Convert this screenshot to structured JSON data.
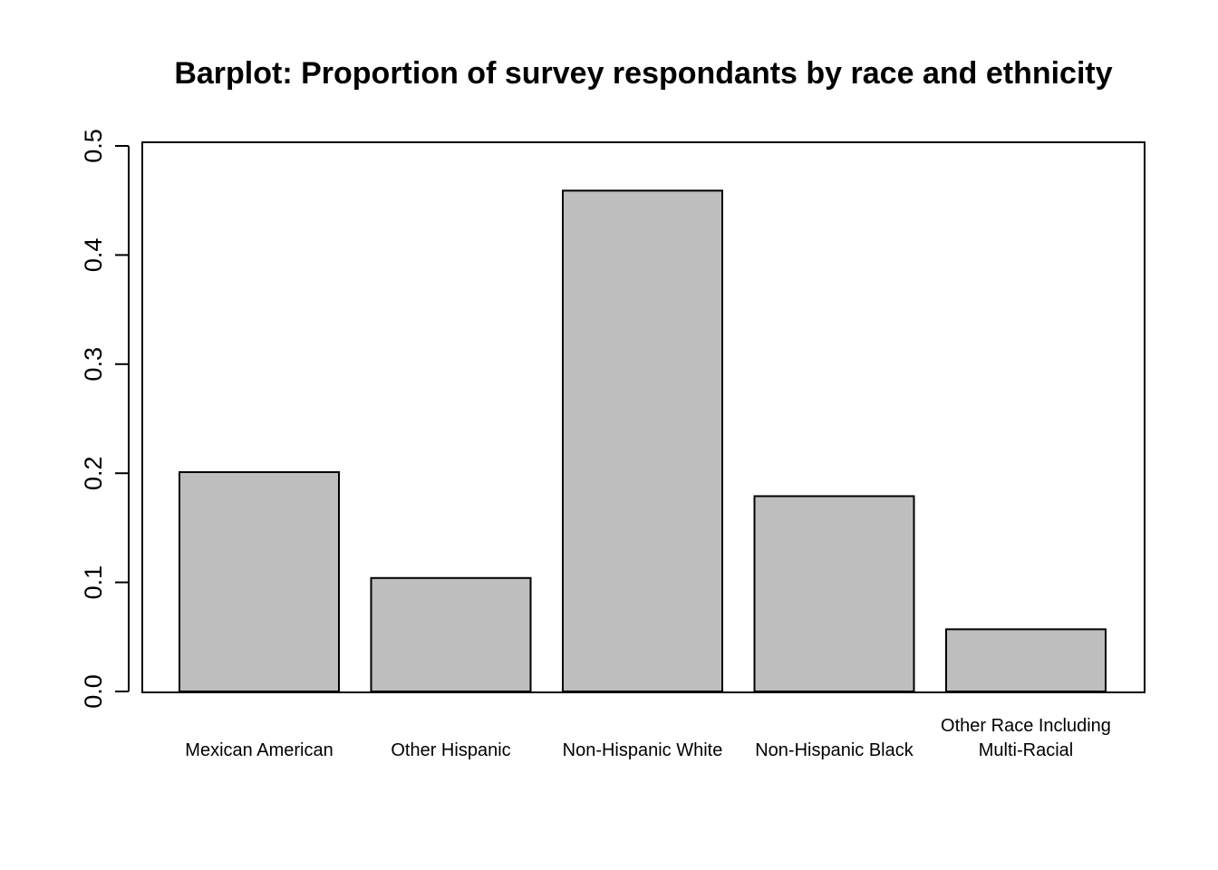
{
  "chart_data": {
    "type": "bar",
    "title": "Barplot: Proportion of survey respondants by race and ethnicity",
    "xlabel": "",
    "ylabel": "",
    "categories": [
      "Mexican American",
      "Other Hispanic",
      "Non-Hispanic White",
      "Non-Hispanic Black",
      "Other Race Including Multi-Racial"
    ],
    "category_lines": [
      [
        "Mexican American"
      ],
      [
        "Other Hispanic"
      ],
      [
        "Non-Hispanic White"
      ],
      [
        "Non-Hispanic Black"
      ],
      [
        "Other Race Including",
        "Multi-Racial"
      ]
    ],
    "values": [
      0.201,
      0.104,
      0.459,
      0.179,
      0.057
    ],
    "ylim": [
      0,
      0.5
    ],
    "yticks": [
      "0.0",
      "0.1",
      "0.2",
      "0.3",
      "0.4",
      "0.5"
    ],
    "grid": false,
    "bar_color": "#bebebe",
    "bar_border_color": "#000000"
  }
}
